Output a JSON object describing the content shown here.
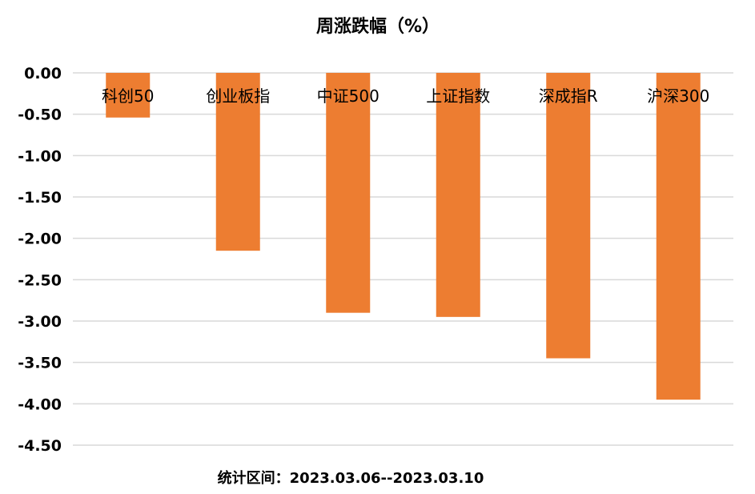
{
  "chart_data": {
    "type": "bar",
    "title": "周涨跌幅（%）",
    "xlabel": "",
    "ylabel": "",
    "categories": [
      "科创50",
      "创业板指",
      "中证500",
      "上证指数",
      "深成指R",
      "沪深300"
    ],
    "values": [
      -0.54,
      -2.15,
      -2.9,
      -2.95,
      -3.45,
      -3.95
    ],
    "ylim": [
      -4.5,
      0
    ],
    "yticks": [
      "0.00",
      "-0.50",
      "-1.00",
      "-1.50",
      "-2.00",
      "-2.50",
      "-3.00",
      "-3.50",
      "-4.00",
      "-4.50"
    ],
    "grid": true,
    "legend": "none",
    "bar_color": "#ED7D31",
    "grid_color": "#D9D9D9",
    "footer": "统计区间：2023.03.06--2023.03.10"
  }
}
